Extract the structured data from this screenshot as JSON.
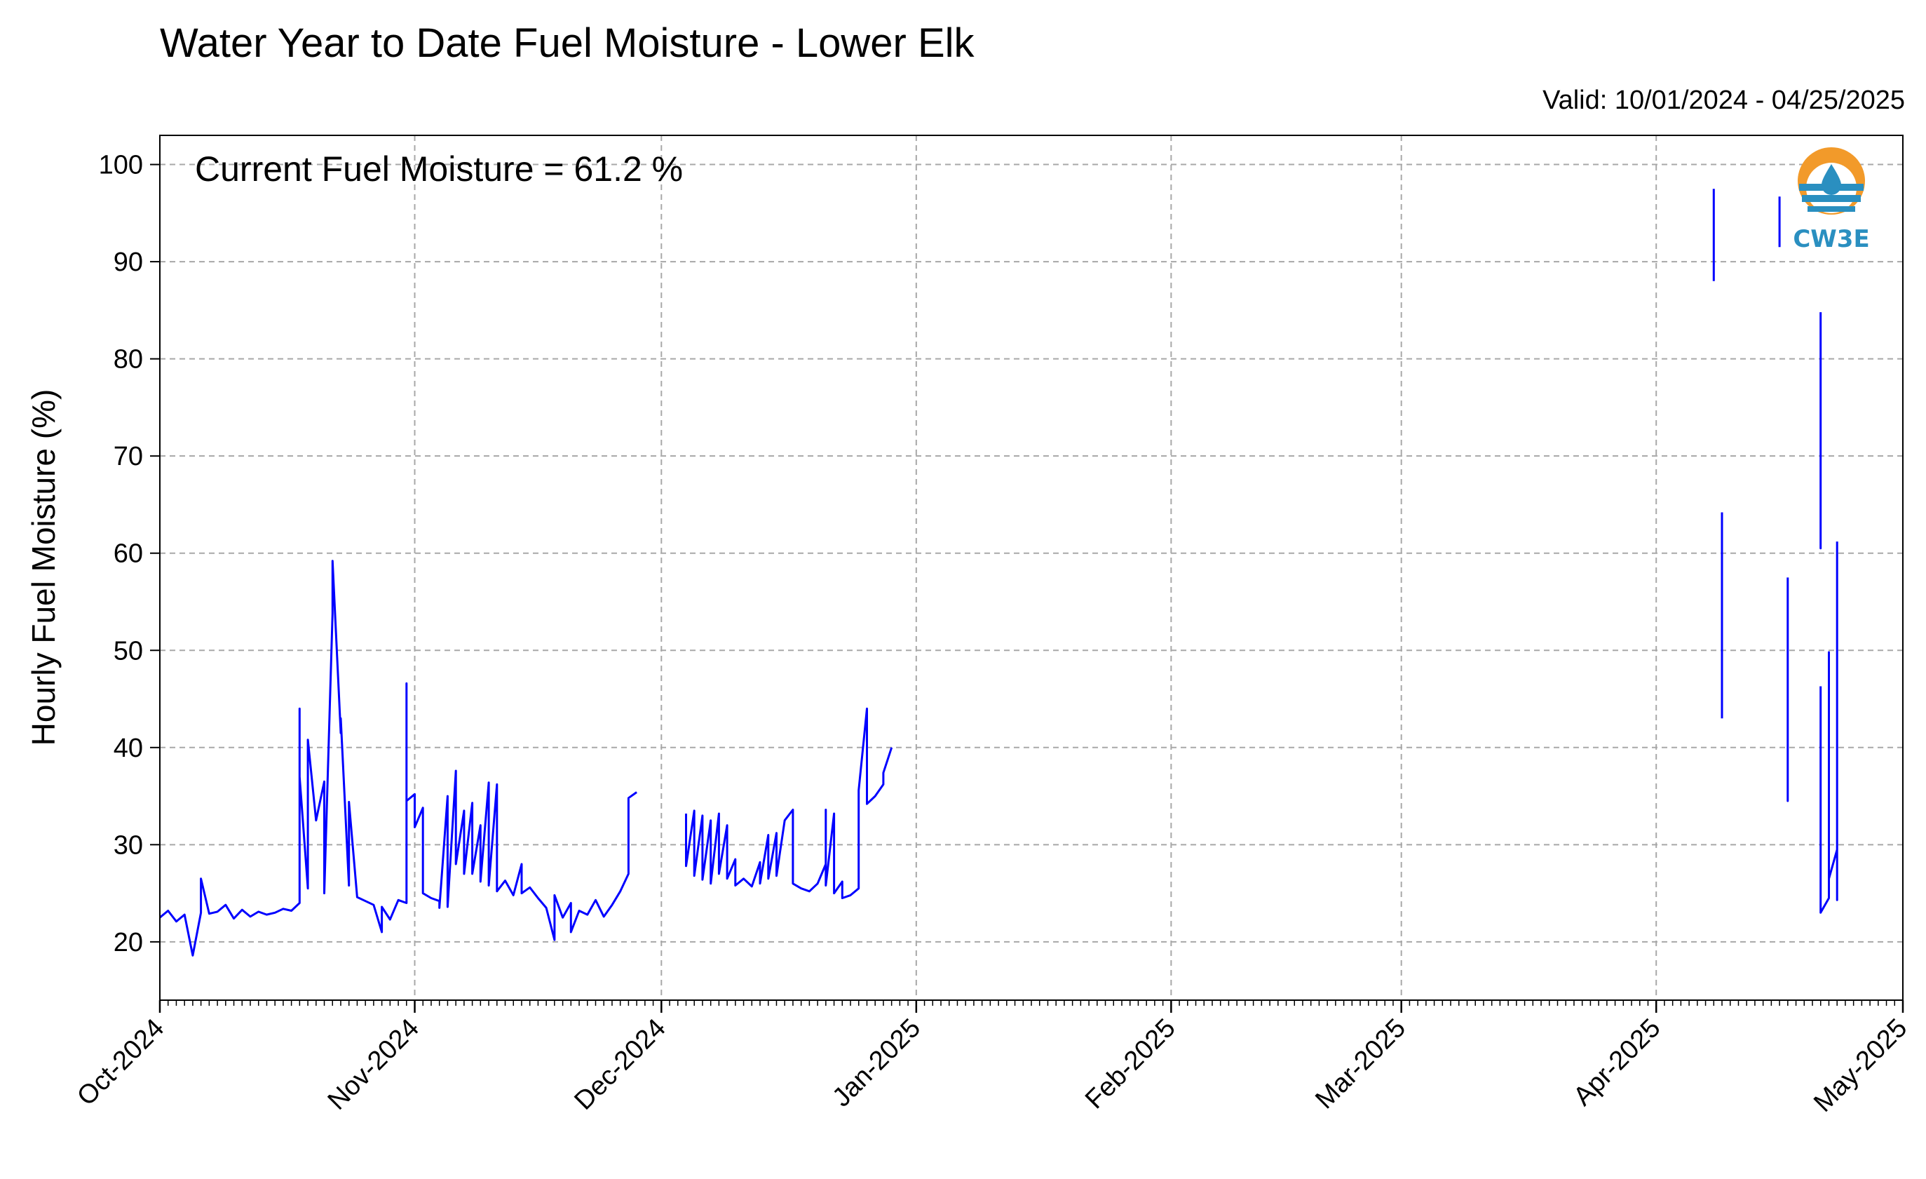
{
  "chart_data": {
    "type": "line",
    "title": "Water Year to Date Fuel Moisture - Lower Elk",
    "subtitle": "Valid: 10/01/2024 - 04/25/2025",
    "ylabel": "Hourly Fuel Moisture (%)",
    "xlabel": "",
    "annotation": "Current Fuel Moisture = 61.2 %",
    "logo_text": "CW3E",
    "ylim": [
      14,
      103
    ],
    "yticks": [
      20,
      30,
      40,
      50,
      60,
      70,
      80,
      90,
      100
    ],
    "xlim": [
      "2024-10-01",
      "2025-05-01"
    ],
    "xticks": [
      {
        "date": "2024-10-01",
        "label": "Oct-2024"
      },
      {
        "date": "2024-11-01",
        "label": "Nov-2024"
      },
      {
        "date": "2024-12-01",
        "label": "Dec-2024"
      },
      {
        "date": "2025-01-01",
        "label": "Jan-2025"
      },
      {
        "date": "2025-02-01",
        "label": "Feb-2025"
      },
      {
        "date": "2025-03-01",
        "label": "Mar-2025"
      },
      {
        "date": "2025-04-01",
        "label": "Apr-2025"
      },
      {
        "date": "2025-05-01",
        "label": "May-2025"
      }
    ],
    "grid": true,
    "line_color": "#0000ff",
    "series": [
      {
        "name": "",
        "segments": [
          [
            [
              "2024-10-01",
              22.5
            ],
            [
              "2024-10-02",
              23.2
            ],
            [
              "2024-10-03",
              22.1
            ],
            [
              "2024-10-04",
              22.8
            ],
            [
              "2024-10-05",
              18.6
            ],
            [
              "2024-10-06",
              23.0
            ],
            [
              "2024-10-06",
              26.5
            ],
            [
              "2024-10-07",
              22.9
            ],
            [
              "2024-10-08",
              23.1
            ],
            [
              "2024-10-09",
              23.8
            ],
            [
              "2024-10-10",
              22.4
            ],
            [
              "2024-10-11",
              23.3
            ],
            [
              "2024-10-12",
              22.6
            ],
            [
              "2024-10-13",
              23.1
            ],
            [
              "2024-10-14",
              22.8
            ],
            [
              "2024-10-15",
              23.0
            ],
            [
              "2024-10-16",
              23.4
            ],
            [
              "2024-10-17",
              23.2
            ],
            [
              "2024-10-18",
              24.0
            ],
            [
              "2024-10-18",
              44.0
            ],
            [
              "2024-10-18",
              37.0
            ],
            [
              "2024-10-19",
              25.5
            ],
            [
              "2024-10-19",
              40.8
            ],
            [
              "2024-10-20",
              32.5
            ],
            [
              "2024-10-21",
              36.5
            ],
            [
              "2024-10-21",
              25.0
            ],
            [
              "2024-10-22",
              53.8
            ],
            [
              "2024-10-22",
              59.2
            ],
            [
              "2024-10-23",
              41.5
            ],
            [
              "2024-10-23",
              43.0
            ],
            [
              "2024-10-24",
              25.8
            ],
            [
              "2024-10-24",
              34.4
            ],
            [
              "2024-10-25",
              24.6
            ],
            [
              "2024-10-26",
              24.2
            ],
            [
              "2024-10-27",
              23.8
            ],
            [
              "2024-10-28",
              21.0
            ],
            [
              "2024-10-28",
              23.6
            ],
            [
              "2024-10-29",
              22.3
            ],
            [
              "2024-10-30",
              24.3
            ],
            [
              "2024-10-31",
              24.0
            ],
            [
              "2024-10-31",
              46.6
            ],
            [
              "2024-10-31",
              34.5
            ],
            [
              "2024-11-01",
              35.2
            ],
            [
              "2024-11-01",
              31.8
            ],
            [
              "2024-11-02",
              33.8
            ],
            [
              "2024-11-02",
              25.0
            ],
            [
              "2024-11-03",
              24.5
            ],
            [
              "2024-11-04",
              24.2
            ],
            [
              "2024-11-04",
              23.5
            ],
            [
              "2024-11-05",
              35.0
            ],
            [
              "2024-11-05",
              23.6
            ],
            [
              "2024-11-06",
              37.6
            ],
            [
              "2024-11-06",
              28.0
            ],
            [
              "2024-11-07",
              33.5
            ],
            [
              "2024-11-07",
              27.0
            ],
            [
              "2024-11-08",
              34.3
            ],
            [
              "2024-11-08",
              27.0
            ],
            [
              "2024-11-09",
              32.0
            ],
            [
              "2024-11-09",
              26.2
            ],
            [
              "2024-11-10",
              36.4
            ],
            [
              "2024-11-10",
              25.8
            ],
            [
              "2024-11-11",
              36.2
            ],
            [
              "2024-11-11",
              25.2
            ],
            [
              "2024-11-12",
              26.3
            ],
            [
              "2024-11-13",
              24.8
            ],
            [
              "2024-11-14",
              28.0
            ],
            [
              "2024-11-14",
              25.0
            ],
            [
              "2024-11-15",
              25.6
            ],
            [
              "2024-11-16",
              24.5
            ],
            [
              "2024-11-17",
              23.5
            ],
            [
              "2024-11-18",
              20.2
            ],
            [
              "2024-11-18",
              24.8
            ],
            [
              "2024-11-19",
              22.5
            ],
            [
              "2024-11-20",
              24.0
            ],
            [
              "2024-11-20",
              21.0
            ],
            [
              "2024-11-21",
              23.2
            ],
            [
              "2024-11-22",
              22.8
            ],
            [
              "2024-11-23",
              24.3
            ],
            [
              "2024-11-24",
              22.6
            ],
            [
              "2024-11-25",
              23.8
            ],
            [
              "2024-11-26",
              25.2
            ],
            [
              "2024-11-27",
              27.0
            ],
            [
              "2024-11-27",
              34.8
            ],
            [
              "2024-11-28",
              35.4
            ]
          ],
          [
            [
              "2024-12-04",
              33.2
            ],
            [
              "2024-12-04",
              27.8
            ],
            [
              "2024-12-05",
              33.5
            ],
            [
              "2024-12-05",
              26.8
            ],
            [
              "2024-12-06",
              33.0
            ],
            [
              "2024-12-06",
              26.4
            ],
            [
              "2024-12-07",
              32.5
            ],
            [
              "2024-12-07",
              26.0
            ],
            [
              "2024-12-08",
              33.2
            ],
            [
              "2024-12-08",
              27.0
            ],
            [
              "2024-12-09",
              32.0
            ],
            [
              "2024-12-09",
              26.5
            ],
            [
              "2024-12-10",
              28.5
            ],
            [
              "2024-12-10",
              25.8
            ],
            [
              "2024-12-11",
              26.5
            ],
            [
              "2024-12-12",
              25.7
            ],
            [
              "2024-12-13",
              28.2
            ],
            [
              "2024-12-13",
              26.0
            ],
            [
              "2024-12-14",
              31.0
            ],
            [
              "2024-12-14",
              26.5
            ],
            [
              "2024-12-15",
              31.2
            ],
            [
              "2024-12-15",
              26.8
            ],
            [
              "2024-12-16",
              32.5
            ],
            [
              "2024-12-17",
              33.6
            ],
            [
              "2024-12-17",
              26.0
            ],
            [
              "2024-12-18",
              25.5
            ],
            [
              "2024-12-19",
              25.2
            ],
            [
              "2024-12-20",
              26.0
            ],
            [
              "2024-12-21",
              28.0
            ],
            [
              "2024-12-21",
              33.6
            ],
            [
              "2024-12-21",
              25.8
            ],
            [
              "2024-12-22",
              33.2
            ],
            [
              "2024-12-22",
              25.0
            ],
            [
              "2024-12-23",
              26.2
            ],
            [
              "2024-12-23",
              24.5
            ],
            [
              "2024-12-24",
              24.8
            ],
            [
              "2024-12-25",
              25.5
            ],
            [
              "2024-12-25",
              34.8
            ],
            [
              "2024-12-25",
              35.6
            ],
            [
              "2024-12-26",
              44.0
            ],
            [
              "2024-12-26",
              34.2
            ],
            [
              "2024-12-27",
              35.0
            ],
            [
              "2024-12-28",
              36.2
            ],
            [
              "2024-12-28",
              37.4
            ],
            [
              "2024-12-29",
              40.0
            ]
          ],
          [
            [
              "2025-04-08",
              97.5
            ],
            [
              "2025-04-08",
              88.0
            ]
          ],
          [
            [
              "2025-04-09",
              64.2
            ],
            [
              "2025-04-09",
              43.0
            ]
          ],
          [
            [
              "2025-04-16",
              96.7
            ],
            [
              "2025-04-16",
              91.5
            ]
          ],
          [
            [
              "2025-04-17",
              57.5
            ],
            [
              "2025-04-17",
              34.5
            ],
            [
              "2025-04-17",
              45.0
            ],
            [
              "2025-04-17",
              40.0
            ]
          ],
          [
            [
              "2025-04-21",
              84.8
            ],
            [
              "2025-04-21",
              60.5
            ],
            [
              "2025-04-21",
              64.8
            ],
            [
              "2025-04-21",
              61.0
            ]
          ],
          [
            [
              "2025-04-21",
              46.3
            ],
            [
              "2025-04-21",
              23.0
            ],
            [
              "2025-04-22",
              24.5
            ],
            [
              "2025-04-22",
              49.8
            ],
            [
              "2025-04-22",
              26.5
            ],
            [
              "2025-04-23",
              29.5
            ],
            [
              "2025-04-23",
              24.3
            ],
            [
              "2025-04-23",
              61.2
            ]
          ]
        ]
      }
    ]
  }
}
